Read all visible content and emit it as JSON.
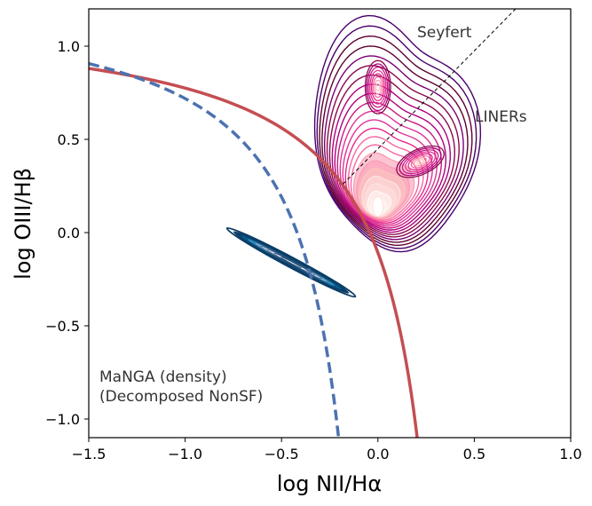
{
  "chart_data": {
    "type": "line",
    "xlabel": "log NII/Hα",
    "ylabel": "log OIII/Hβ",
    "xlim": [
      -1.5,
      1.0
    ],
    "ylim": [
      -1.1,
      1.2
    ],
    "xticks": [
      -1.5,
      -1.0,
      -0.5,
      0.0,
      0.5,
      1.0
    ],
    "xtick_labels": [
      "−1.5",
      "−1.0",
      "−0.5",
      "0.0",
      "0.5",
      "1.0"
    ],
    "yticks": [
      -1.0,
      -0.5,
      0.0,
      0.5,
      1.0
    ],
    "ytick_labels": [
      "−1.0",
      "−0.5",
      "0.0",
      "0.5",
      "1.0"
    ],
    "grid": false,
    "legend": "none",
    "series": [
      {
        "style": "solid",
        "color": "#c44e52",
        "formula": "0.61/(x-0.47)+1.19",
        "x": [
          -1.5,
          -1.3,
          -1.1,
          -0.9,
          -0.7,
          -0.5,
          -0.3,
          -0.2,
          -0.1,
          0.0,
          0.1,
          0.2
        ],
        "y": [
          0.88,
          0.84,
          0.78,
          0.72,
          0.64,
          0.54,
          0.4,
          0.28,
          0.12,
          -0.11,
          -0.5,
          -1.07
        ]
      },
      {
        "style": "dashed",
        "color": "#4c72b0",
        "formula": "0.61/(x-0.05)+1.30",
        "x": [
          -1.5,
          -1.3,
          -1.1,
          -0.9,
          -0.7,
          -0.5,
          -0.35,
          -0.25,
          -0.2
        ],
        "y": [
          0.91,
          0.85,
          0.77,
          0.66,
          0.49,
          0.19,
          -0.22,
          -0.73,
          -1.14
        ]
      },
      {
        "style": "dashed-thin",
        "color": "#000000",
        "formula": "1.05*x+0.45",
        "x": [
          -0.18,
          0.72
        ],
        "y": [
          0.26,
          1.2
        ]
      }
    ],
    "contours": [
      {
        "name": "MaNGA (density) (Decomposed NonSF)",
        "colormap": "PuBu",
        "line_color": "#0b3d66",
        "center": [
          -0.45,
          -0.16
        ],
        "extent_x": [
          -0.62,
          -0.33
        ],
        "extent_y": [
          -0.5,
          0.18
        ]
      },
      {
        "colormap": "RdPu",
        "line_color": "#5e0030",
        "peak": [
          0.0,
          0.14
        ],
        "secondary_peaks": [
          [
            0.22,
            0.38
          ],
          [
            0.0,
            0.78
          ]
        ],
        "extent_x": [
          -0.3,
          0.45
        ],
        "extent_y": [
          -0.12,
          1.2
        ]
      }
    ],
    "annotations": [
      {
        "text": "Seyfert",
        "x": 0.2,
        "y": 1.05
      },
      {
        "text": "LINERs",
        "x": 0.5,
        "y": 0.6
      },
      {
        "text": "MaNGA (density)",
        "x": -1.46,
        "y": -0.76
      },
      {
        "text": "(Decomposed NonSF)",
        "x": -1.46,
        "y": -0.86
      }
    ]
  }
}
